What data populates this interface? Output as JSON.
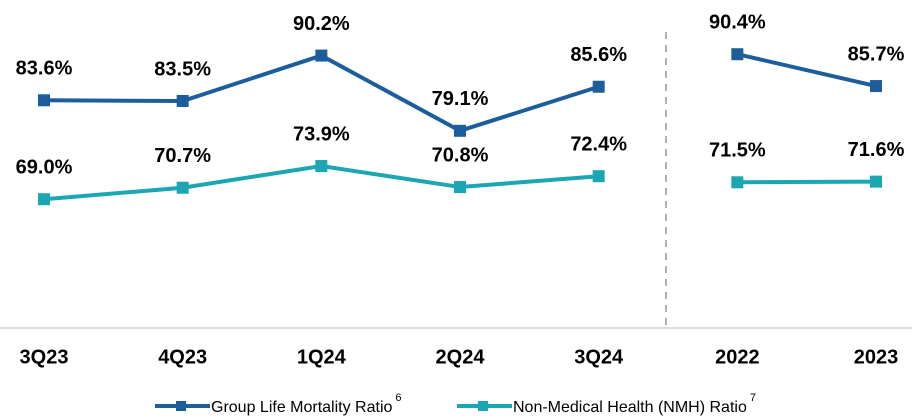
{
  "chart_data": [
    {
      "type": "line",
      "categories": [
        "3Q23",
        "4Q23",
        "1Q24",
        "2Q24",
        "3Q24"
      ],
      "ylim": [
        50,
        98.4
      ],
      "series": [
        {
          "name": "Group Life Mortality Ratio",
          "footnote": "6",
          "color": "#1b5e9b",
          "values": [
            83.6,
            83.5,
            90.2,
            79.1,
            85.6
          ],
          "value_labels": [
            "83.6%",
            "83.5%",
            "90.2%",
            "79.1%",
            "85.6%"
          ]
        },
        {
          "name": "Non-Medical Health (NMH) Ratio",
          "footnote": "7",
          "color": "#1aa6b3",
          "values": [
            69.0,
            70.7,
            73.9,
            70.8,
            72.4
          ],
          "value_labels": [
            "69.0%",
            "70.7%",
            "73.9%",
            "70.8%",
            "72.4%"
          ]
        }
      ]
    },
    {
      "type": "line",
      "categories": [
        "2022",
        "2023"
      ],
      "ylim": [
        50,
        98.4
      ],
      "series": [
        {
          "color": "#1b5e9b",
          "values": [
            90.4,
            85.7
          ],
          "value_labels": [
            "90.4%",
            "85.7%"
          ]
        },
        {
          "color": "#1aa6b3",
          "values": [
            71.5,
            71.6
          ],
          "value_labels": [
            "71.5%",
            "71.6%"
          ]
        }
      ]
    }
  ]
}
